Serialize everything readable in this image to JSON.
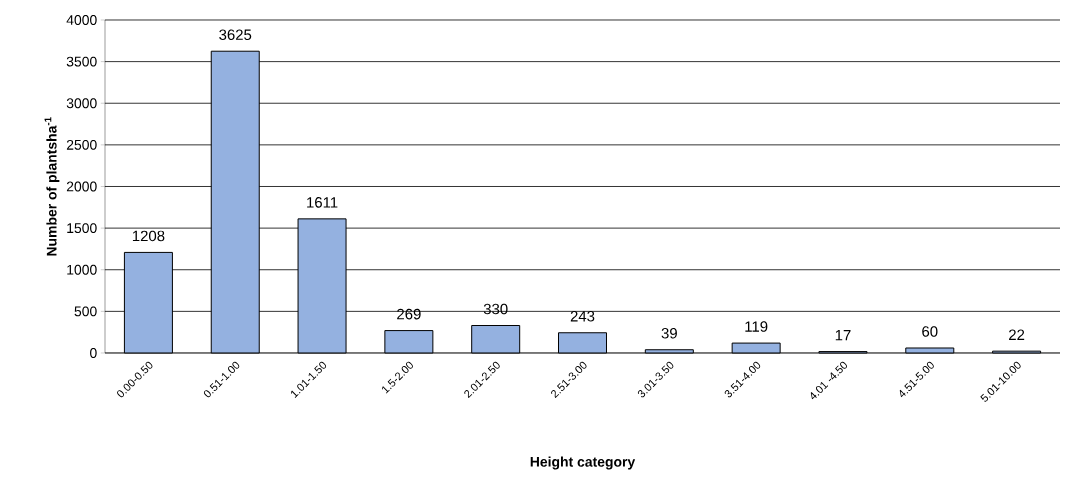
{
  "chart_data": {
    "type": "bar",
    "xlabel": "Height category",
    "ylabel": "Number of plantsha$^{-1}$",
    "categories": [
      "0.00-0.50",
      "0.51-1.00",
      "1.01-1.50",
      "1.5-2.00",
      "2.01-2.50",
      "2.51-3.00",
      "3.01-3.50",
      "3.51-4.00",
      "4.01 -4.50",
      "4.51-5.00",
      "5.01-10.00"
    ],
    "values": [
      1208,
      3625,
      1611,
      269,
      330,
      243,
      39,
      119,
      17,
      60,
      22
    ],
    "color": "#94b1e0",
    "ylim": [
      0,
      4000
    ],
    "yticks": [
      0,
      500,
      1000,
      1500,
      2000,
      2500,
      3000,
      3500,
      4000
    ],
    "grid": "y",
    "data_labels": true
  }
}
